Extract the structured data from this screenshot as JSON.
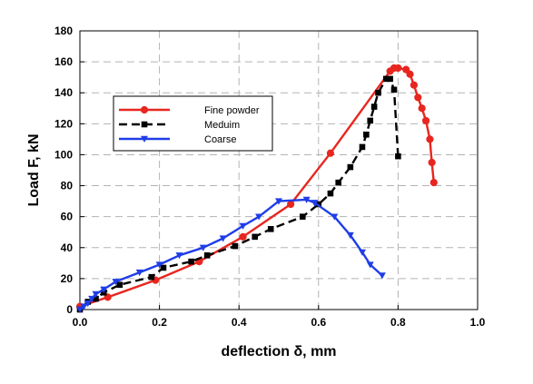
{
  "chart_data": {
    "type": "line",
    "xlabel": "deflection δ, mm",
    "ylabel": "Load F, kN",
    "xlim": [
      0,
      1.0
    ],
    "ylim": [
      0,
      180
    ],
    "xticks": [
      "0.0",
      "0.2",
      "0.4",
      "0.6",
      "0.8",
      "1.0"
    ],
    "yticks": [
      "0",
      "20",
      "40",
      "60",
      "80",
      "100",
      "120",
      "140",
      "160",
      "180"
    ],
    "grid": true,
    "legend_position": "upper-left",
    "series": [
      {
        "name": "Fine powder",
        "color": "#e8261f",
        "marker": "circle",
        "line_style": "solid",
        "x": [
          0.0,
          0.07,
          0.19,
          0.3,
          0.41,
          0.53,
          0.63,
          0.78,
          0.79,
          0.8,
          0.82,
          0.83,
          0.84,
          0.85,
          0.86,
          0.87,
          0.88,
          0.885,
          0.89
        ],
        "y": [
          2,
          8,
          19,
          31,
          47,
          68,
          101,
          154,
          156,
          156,
          155,
          152,
          145,
          137,
          130,
          122,
          110,
          95,
          82
        ]
      },
      {
        "name": "Meduim",
        "color": "#000000",
        "marker": "square",
        "line_style": "dashed",
        "x": [
          0.0,
          0.02,
          0.04,
          0.06,
          0.1,
          0.18,
          0.21,
          0.28,
          0.32,
          0.39,
          0.44,
          0.48,
          0.56,
          0.6,
          0.63,
          0.65,
          0.68,
          0.71,
          0.72,
          0.73,
          0.74,
          0.75,
          0.77,
          0.78,
          0.79,
          0.8
        ],
        "y": [
          0,
          5,
          7,
          11,
          16,
          21,
          27,
          31,
          35,
          41,
          47,
          52,
          60,
          68,
          75,
          82,
          92,
          105,
          113,
          122,
          131,
          140,
          149,
          149,
          142,
          99
        ]
      },
      {
        "name": "Coarse",
        "color": "#1f3de8",
        "marker": "triangle-down",
        "line_style": "solid",
        "x": [
          0.0,
          0.01,
          0.02,
          0.03,
          0.04,
          0.06,
          0.09,
          0.15,
          0.2,
          0.25,
          0.31,
          0.36,
          0.41,
          0.45,
          0.5,
          0.57,
          0.59,
          0.64,
          0.68,
          0.71,
          0.73,
          0.76
        ],
        "y": [
          0,
          2,
          4,
          7,
          10,
          13,
          18,
          24,
          29,
          35,
          40,
          46,
          54,
          60,
          70,
          71,
          69,
          60,
          48,
          37,
          29,
          22
        ]
      }
    ]
  }
}
